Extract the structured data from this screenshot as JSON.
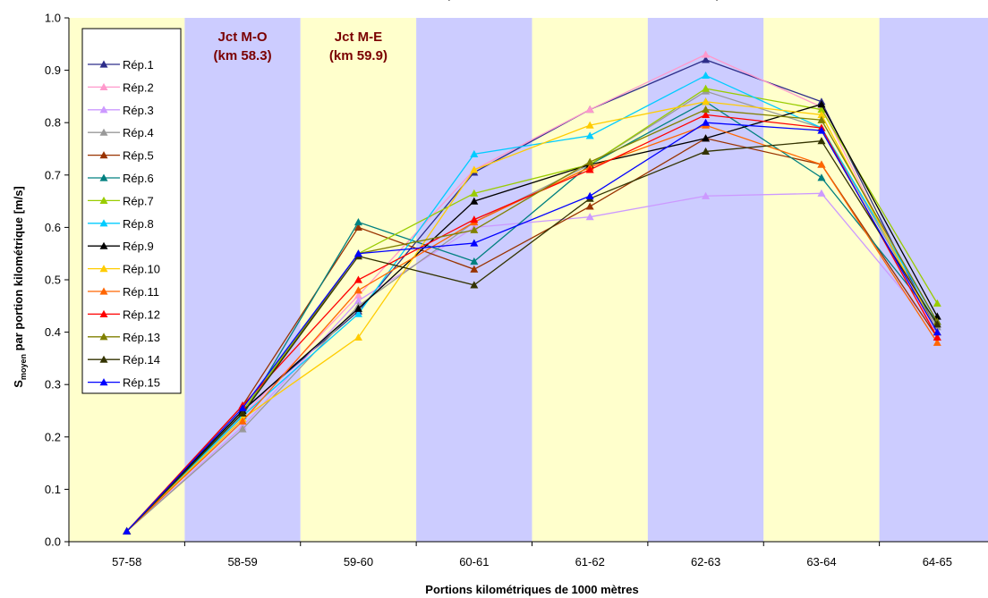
{
  "chart_data": {
    "type": "line",
    "title_partial": "p",
    "title_links": [
      "",
      ""
    ],
    "title_close": ")",
    "xlabel": "Portions kilométriques de 1000 mètres",
    "ylabel": {
      "main": "S",
      "sub": "moyen",
      "rest": " par portion kilométrique [m/s]"
    },
    "ylim": [
      0.0,
      1.0
    ],
    "yticks": [
      "0.0",
      "0.1",
      "0.2",
      "0.3",
      "0.4",
      "0.5",
      "0.6",
      "0.7",
      "0.8",
      "0.9",
      "1.0"
    ],
    "categories": [
      "57-58",
      "58-59",
      "59-60",
      "60-61",
      "61-62",
      "62-63",
      "63-64",
      "64-65"
    ],
    "bands": [
      {
        "color": "#ffffcc"
      },
      {
        "color": "#ccccff"
      },
      {
        "color": "#ffffcc"
      },
      {
        "color": "#ccccff"
      },
      {
        "color": "#ffffcc"
      },
      {
        "color": "#ccccff"
      },
      {
        "color": "#ffffcc"
      },
      {
        "color": "#ccccff"
      }
    ],
    "band_annotations": [
      {
        "category_index": 1,
        "lines": [
          "Jct M-O",
          "(km 58.3)"
        ]
      },
      {
        "category_index": 2,
        "lines": [
          "Jct M-E",
          "(km 59.9)"
        ]
      }
    ],
    "series": [
      {
        "name": "Rép.1",
        "color": "#2e2e8a",
        "values": [
          0.02,
          0.25,
          0.44,
          0.705,
          0.825,
          0.92,
          0.84,
          0.4
        ]
      },
      {
        "name": "Rép.2",
        "color": "#ff99cc",
        "values": [
          0.02,
          0.24,
          0.47,
          0.71,
          0.825,
          0.93,
          0.83,
          0.39
        ]
      },
      {
        "name": "Rép.3",
        "color": "#cc99ff",
        "values": [
          0.02,
          0.22,
          0.46,
          0.6,
          0.62,
          0.66,
          0.665,
          0.4
        ]
      },
      {
        "name": "Rép.4",
        "color": "#999999",
        "values": [
          0.02,
          0.215,
          0.45,
          0.61,
          0.72,
          0.86,
          0.79,
          0.41
        ]
      },
      {
        "name": "Rép.5",
        "color": "#993300",
        "values": [
          0.02,
          0.26,
          0.6,
          0.52,
          0.64,
          0.77,
          0.72,
          0.39
        ]
      },
      {
        "name": "Rép.6",
        "color": "#008080",
        "values": [
          0.02,
          0.24,
          0.61,
          0.535,
          0.72,
          0.84,
          0.695,
          0.42
        ]
      },
      {
        "name": "Rép.7",
        "color": "#99cc00",
        "values": [
          0.02,
          0.25,
          0.55,
          0.665,
          0.72,
          0.865,
          0.825,
          0.455
        ]
      },
      {
        "name": "Rép.8",
        "color": "#00ccff",
        "values": [
          0.02,
          0.24,
          0.435,
          0.74,
          0.775,
          0.89,
          0.79,
          0.42
        ]
      },
      {
        "name": "Rép.9",
        "color": "#000000",
        "values": [
          0.02,
          0.25,
          0.445,
          0.65,
          0.72,
          0.77,
          0.835,
          0.43
        ]
      },
      {
        "name": "Rép.10",
        "color": "#ffcc00",
        "values": [
          0.02,
          0.235,
          0.39,
          0.71,
          0.795,
          0.84,
          0.815,
          0.4
        ]
      },
      {
        "name": "Rép.11",
        "color": "#ff6600",
        "values": [
          0.02,
          0.23,
          0.48,
          0.61,
          0.715,
          0.795,
          0.72,
          0.38
        ]
      },
      {
        "name": "Rép.12",
        "color": "#ff0000",
        "values": [
          0.02,
          0.26,
          0.5,
          0.615,
          0.71,
          0.815,
          0.79,
          0.39
        ]
      },
      {
        "name": "Rép.13",
        "color": "#808000",
        "values": [
          0.02,
          0.245,
          0.55,
          0.595,
          0.725,
          0.825,
          0.805,
          0.42
        ]
      },
      {
        "name": "Rép.14",
        "color": "#333300",
        "values": [
          0.02,
          0.245,
          0.545,
          0.49,
          0.655,
          0.745,
          0.765,
          0.415
        ]
      },
      {
        "name": "Rép.15",
        "color": "#0000ff",
        "values": [
          0.02,
          0.255,
          0.55,
          0.57,
          0.66,
          0.8,
          0.785,
          0.4
        ]
      }
    ]
  }
}
